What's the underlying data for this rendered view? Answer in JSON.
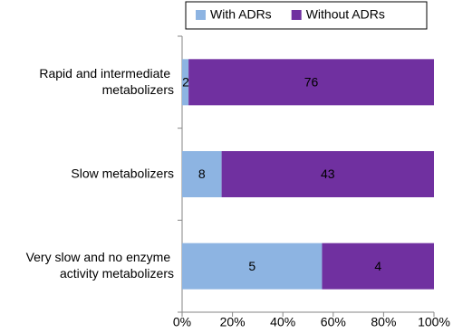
{
  "chart_data": {
    "type": "bar",
    "orientation": "horizontal",
    "stacking": "percent",
    "categories": [
      "Rapid and intermediate metabolizers",
      "Slow metabolizers",
      "Very slow and no enzyme activity metabolizers"
    ],
    "series": [
      {
        "name": "With ADRs",
        "color": "#8db4e2",
        "values": [
          2,
          8,
          5
        ]
      },
      {
        "name": "Without ADRs",
        "color": "#7030a0",
        "values": [
          76,
          43,
          4
        ]
      }
    ],
    "xlim": [
      0,
      100
    ],
    "xticks": [
      {
        "value": 0,
        "label": "0%"
      },
      {
        "value": 20,
        "label": "20%"
      },
      {
        "value": 40,
        "label": "40%"
      },
      {
        "value": 60,
        "label": "60%"
      },
      {
        "value": 80,
        "label": "80%"
      },
      {
        "value": 100,
        "label": "100%"
      }
    ],
    "grid": false,
    "legend": "top"
  }
}
